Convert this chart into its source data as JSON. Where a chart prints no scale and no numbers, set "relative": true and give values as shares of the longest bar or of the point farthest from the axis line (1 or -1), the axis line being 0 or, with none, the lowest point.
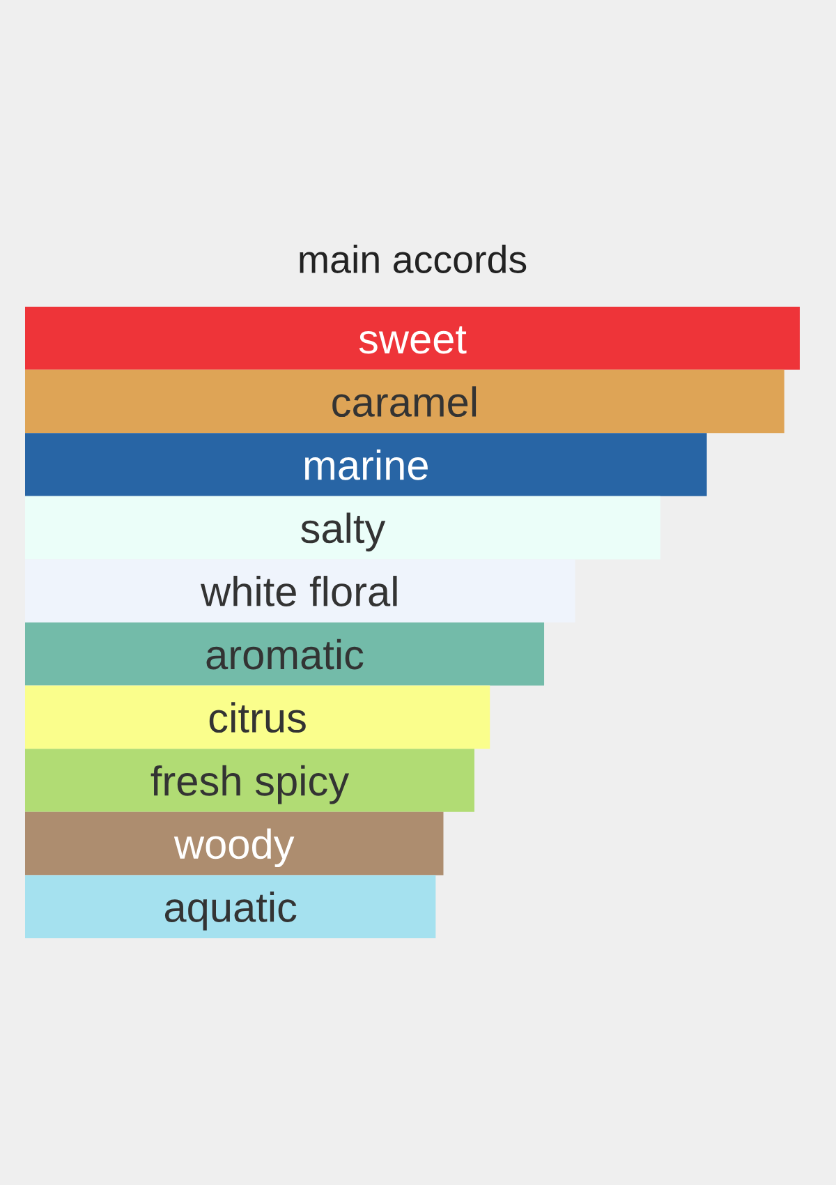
{
  "chart_data": {
    "type": "bar",
    "orientation": "horizontal",
    "relative": true,
    "title": "main accords",
    "categories": [
      "sweet",
      "caramel",
      "marine",
      "salty",
      "white floral",
      "aromatic",
      "citrus",
      "fresh spicy",
      "woody",
      "aquatic"
    ],
    "values": [
      1,
      0.98,
      0.88,
      0.82,
      0.71,
      0.67,
      0.6,
      0.58,
      0.54,
      0.53
    ],
    "colors": [
      "#ee3439",
      "#dea456",
      "#2865a5",
      "#ebfef9",
      "#eff4fc",
      "#73bba9",
      "#fafe8c",
      "#b1dc74",
      "#ad8d6f",
      "#a5e1ef"
    ]
  }
}
